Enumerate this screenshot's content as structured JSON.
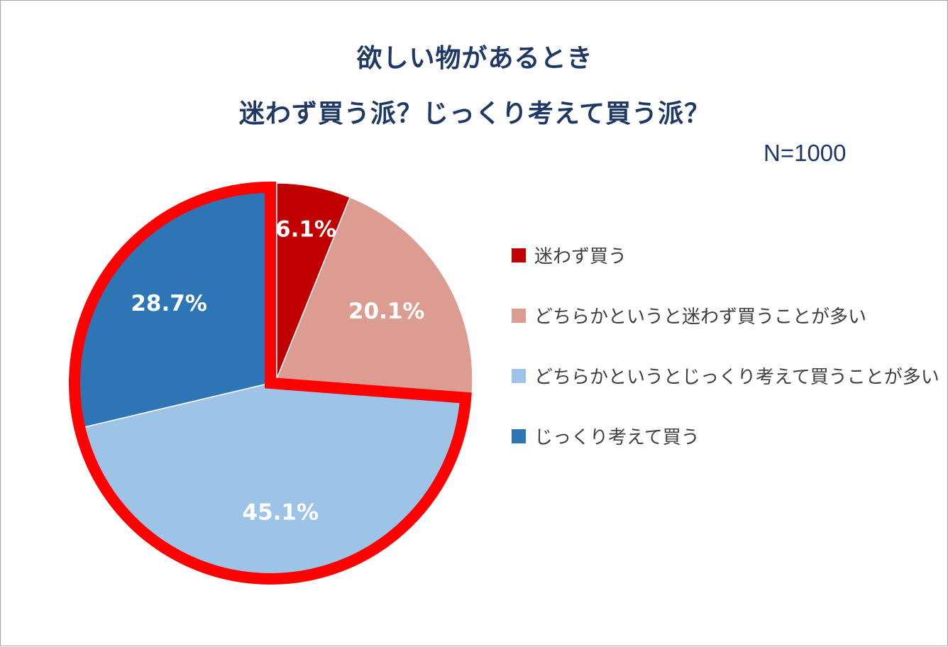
{
  "chart_data": {
    "type": "pie",
    "title": [
      "欲しい物があるとき",
      "迷わず買う派？じっくり考えて買う派？"
    ],
    "note": "N=1000",
    "slices": [
      {
        "label": "迷わず買う",
        "value": 6.1,
        "display": "6.1%",
        "color": "#c00000",
        "exploded": false
      },
      {
        "label": "どちらかというと迷わず買うことが多い",
        "value": 20.1,
        "display": "20.1%",
        "color": "#dc9c92",
        "exploded": false
      },
      {
        "label": "どちらかというとじっくり考えて買うことが多い",
        "value": 45.1,
        "display": "45.1%",
        "color": "#9dc3e6",
        "exploded": true
      },
      {
        "label": "じっくり考えて買う",
        "value": 28.7,
        "display": "28.7%",
        "color": "#2e75b6",
        "exploded": true
      }
    ],
    "legend_position": "right",
    "highlight_outline_color": "#ff0000"
  }
}
